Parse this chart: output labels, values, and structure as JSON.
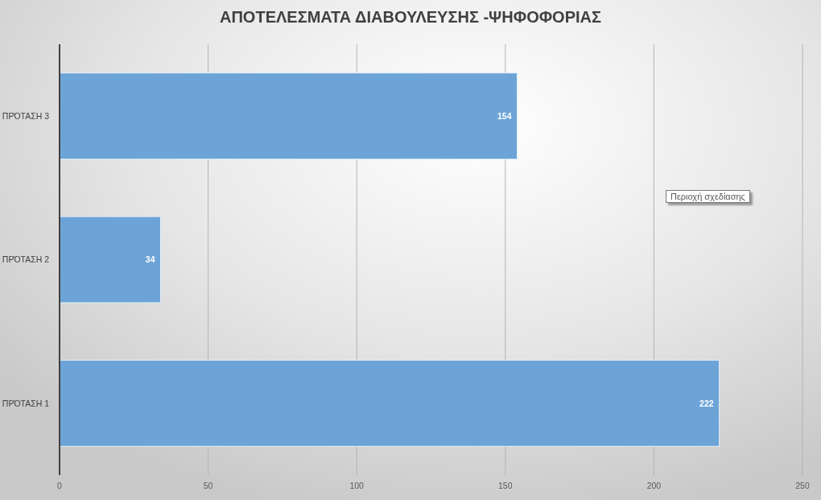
{
  "chart_data": {
    "type": "bar",
    "orientation": "horizontal",
    "title": "ΑΠΟΤΕΛΕΣΜΑΤΑ ΔΙΑΒΟΥΛΕΥΣΗΣ -ΨΗΦΟΦΟΡΙΑΣ",
    "categories": [
      "ΠΡΌΤΑΣΗ 3",
      "ΠΡΌΤΑΣΗ 2",
      "ΠΡΌΤΑΣΗ 1"
    ],
    "values": [
      154,
      34,
      222
    ],
    "color": "#6da4d8",
    "xlim": [
      0,
      250
    ],
    "xticks": [
      0,
      50,
      100,
      150,
      200,
      250
    ],
    "grid": "x",
    "data_labels": true,
    "annotations": [
      "Περιοχή σχεδίασης"
    ]
  }
}
